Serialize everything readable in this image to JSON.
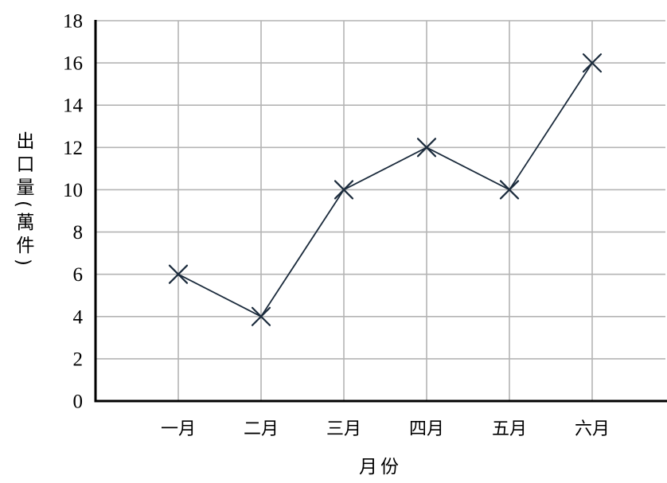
{
  "chart_data": {
    "type": "line",
    "categories": [
      "一月",
      "二月",
      "三月",
      "四月",
      "五月",
      "六月"
    ],
    "series": [
      {
        "values": [
          6,
          4,
          10,
          12,
          10,
          16
        ],
        "marker": "x"
      }
    ],
    "xlabel": "月份",
    "ylabel": "出口量(萬件)",
    "ylim": [
      0,
      18
    ],
    "yticks": [
      0,
      2,
      4,
      6,
      8,
      10,
      12,
      14,
      16,
      18
    ],
    "grid": true,
    "legend": "none"
  },
  "colors": {
    "series": "#1b2b3c",
    "grid": "#b4b4b4",
    "axis": "#000000",
    "background": "#ffffff"
  }
}
